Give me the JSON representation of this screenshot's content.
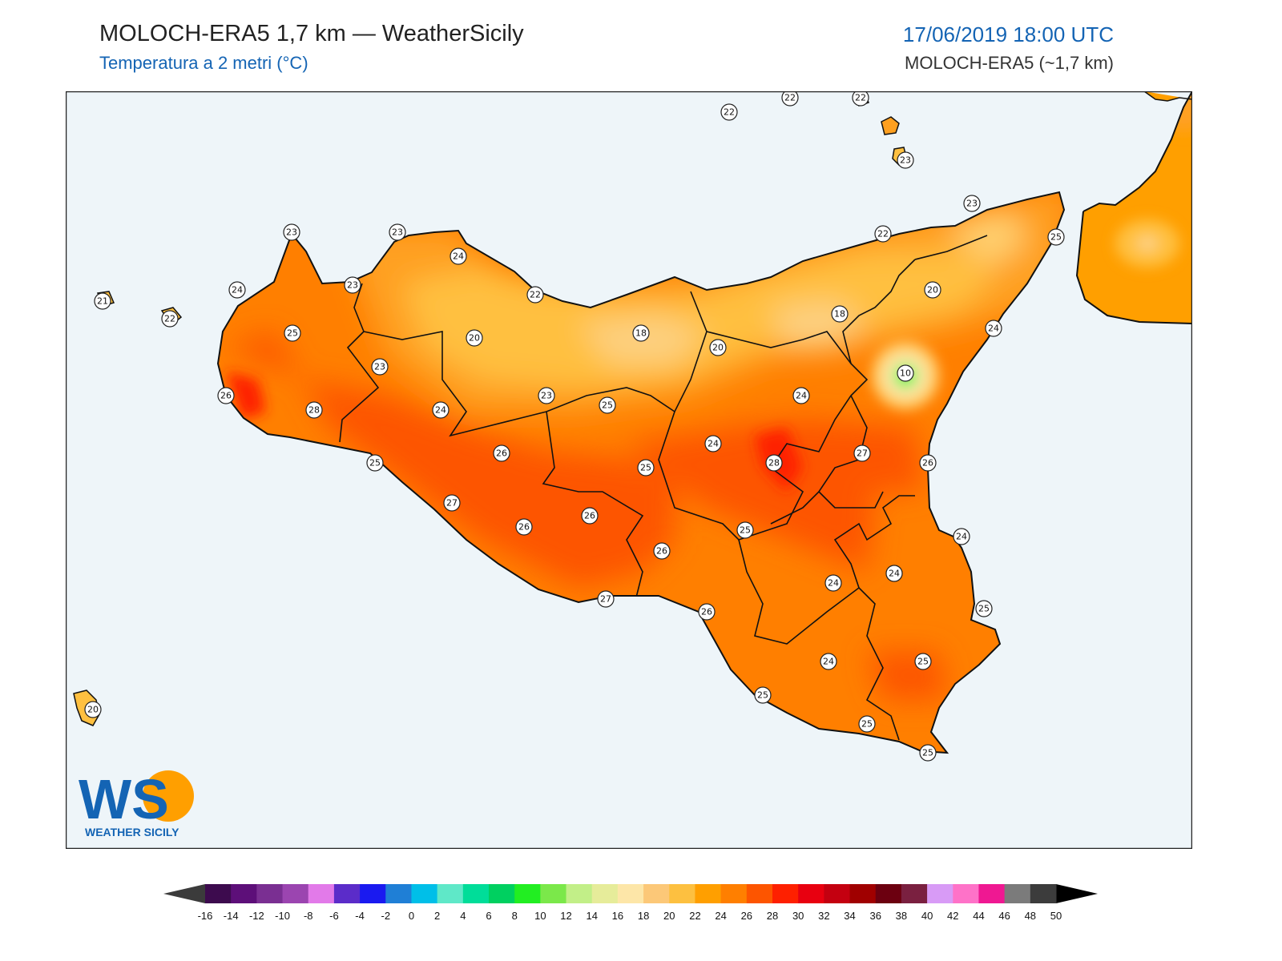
{
  "header": {
    "title": "MOLOCH-ERA5 1,7 km — WeatherSicily",
    "subtitle": "Temperatura a 2 metri (°C)",
    "datetime": "17/06/2019 18:00 UTC",
    "model": "MOLOCH-ERA5 (~1,7 km)"
  },
  "logo": {
    "initials": "WS",
    "name": "WEATHER SICILY"
  },
  "colors": {
    "sea": "#eef5f9",
    "coast": "#111111",
    "border": "#111111"
  },
  "colorbar": {
    "ticks": [
      -16,
      -14,
      -12,
      -10,
      -8,
      -6,
      -4,
      -2,
      0,
      2,
      4,
      6,
      8,
      10,
      12,
      14,
      16,
      18,
      20,
      22,
      24,
      26,
      28,
      30,
      32,
      34,
      36,
      38,
      40,
      42,
      44,
      46,
      48,
      50
    ],
    "colors": [
      "#3d0b4e",
      "#5d0f79",
      "#7a2f92",
      "#9b45b0",
      "#e27ae9",
      "#5b2cc9",
      "#1a1af0",
      "#1f7fd6",
      "#00bfe8",
      "#5fe8c8",
      "#00dd99",
      "#00d060",
      "#22ee22",
      "#7be84a",
      "#c2ef88",
      "#e6ec9a",
      "#fde6a8",
      "#fcc878",
      "#fdc040",
      "#ff9f00",
      "#ff7f00",
      "#fd5500",
      "#fe2000",
      "#e80010",
      "#c40010",
      "#a00000",
      "#6c0010",
      "#7a2040",
      "#d89bf6",
      "#fe72c8",
      "#ef1892",
      "#7b7b7b",
      "#3c3c3c"
    ]
  },
  "map": {
    "labels": [
      {
        "v": "22"
      },
      {
        "v": "22"
      },
      {
        "v": "22"
      },
      {
        "v": "23"
      },
      {
        "v": "23"
      },
      {
        "v": "22"
      },
      {
        "v": "25"
      },
      {
        "v": "20"
      },
      {
        "v": "24"
      },
      {
        "v": "18"
      },
      {
        "v": "10"
      },
      {
        "v": "23"
      },
      {
        "v": "23"
      },
      {
        "v": "24"
      },
      {
        "v": "23"
      },
      {
        "v": "22"
      },
      {
        "v": "21"
      },
      {
        "v": "22"
      },
      {
        "v": "24"
      },
      {
        "v": "25"
      },
      {
        "v": "20"
      },
      {
        "v": "18"
      },
      {
        "v": "20"
      },
      {
        "v": "23"
      },
      {
        "v": "26"
      },
      {
        "v": "28"
      },
      {
        "v": "23"
      },
      {
        "v": "24"
      },
      {
        "v": "25"
      },
      {
        "v": "24"
      },
      {
        "v": "24"
      },
      {
        "v": "28"
      },
      {
        "v": "27"
      },
      {
        "v": "26"
      },
      {
        "v": "25"
      },
      {
        "v": "26"
      },
      {
        "v": "25"
      },
      {
        "v": "27"
      },
      {
        "v": "27"
      },
      {
        "v": "26"
      },
      {
        "v": "26"
      },
      {
        "v": "25"
      },
      {
        "v": "24"
      },
      {
        "v": "27"
      },
      {
        "v": "26"
      },
      {
        "v": "26"
      },
      {
        "v": "24"
      },
      {
        "v": "24"
      },
      {
        "v": "25"
      },
      {
        "v": "25"
      },
      {
        "v": "24"
      },
      {
        "v": "25"
      },
      {
        "v": "25"
      },
      {
        "v": "25"
      },
      {
        "v": "20"
      }
    ]
  }
}
